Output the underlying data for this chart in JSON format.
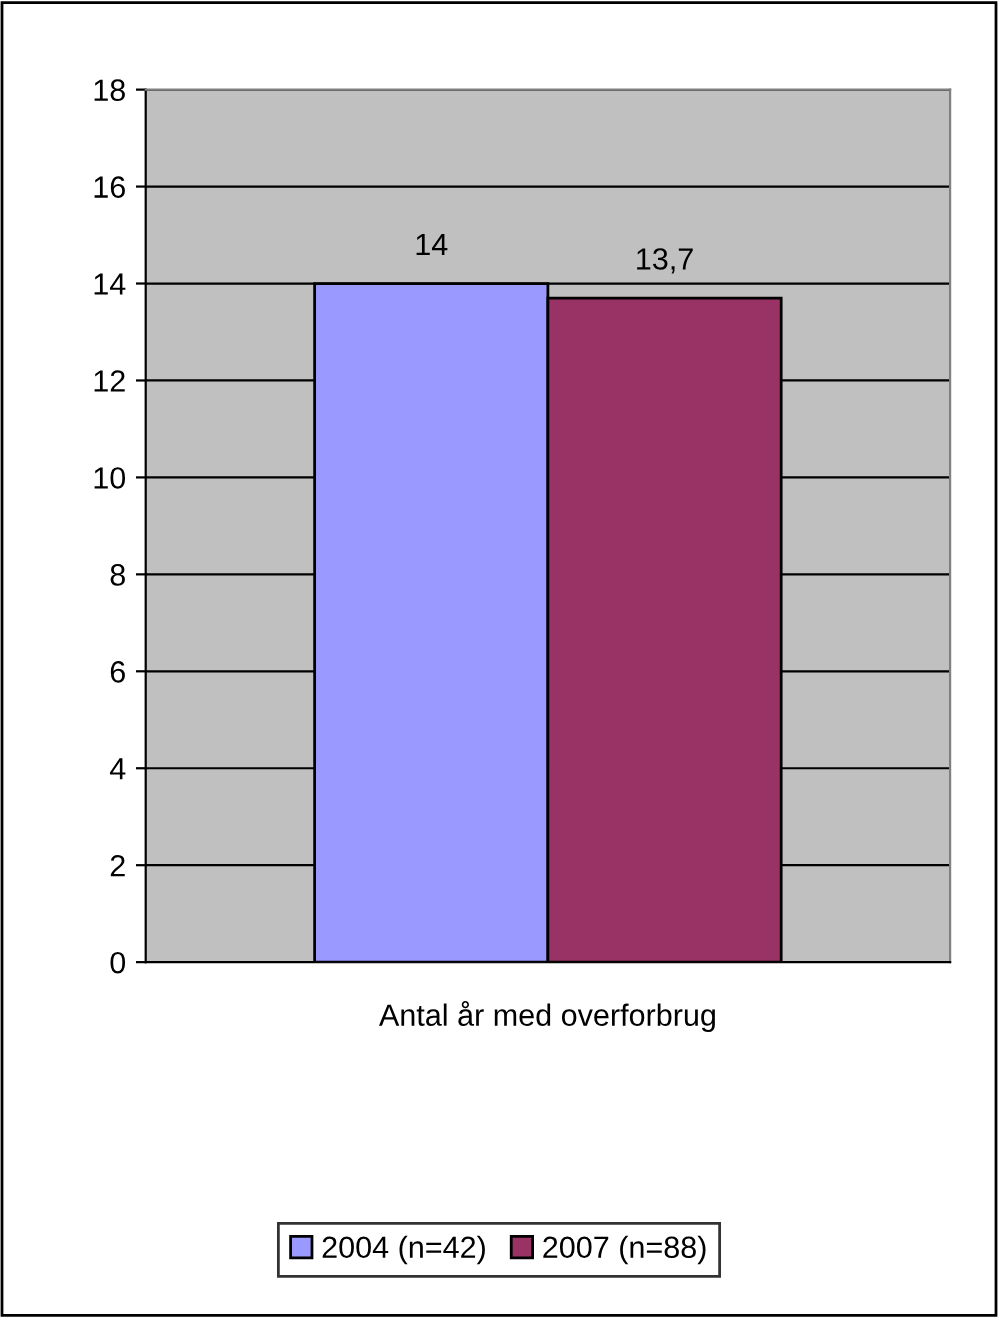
{
  "chart_data": {
    "type": "bar",
    "categories": [
      "Antal år med overforbrug"
    ],
    "series": [
      {
        "name": "2004 (n=42)",
        "color": "#9999ff",
        "values": [
          14
        ],
        "value_labels": [
          "14"
        ]
      },
      {
        "name": "2007 (n=88)",
        "color": "#993366",
        "values": [
          13.7
        ],
        "value_labels": [
          "13,7"
        ]
      }
    ],
    "ylim": [
      0,
      18
    ],
    "yticks": [
      0,
      2,
      4,
      6,
      8,
      10,
      12,
      14,
      16,
      18
    ],
    "grid": "y",
    "legend": "bottom"
  }
}
